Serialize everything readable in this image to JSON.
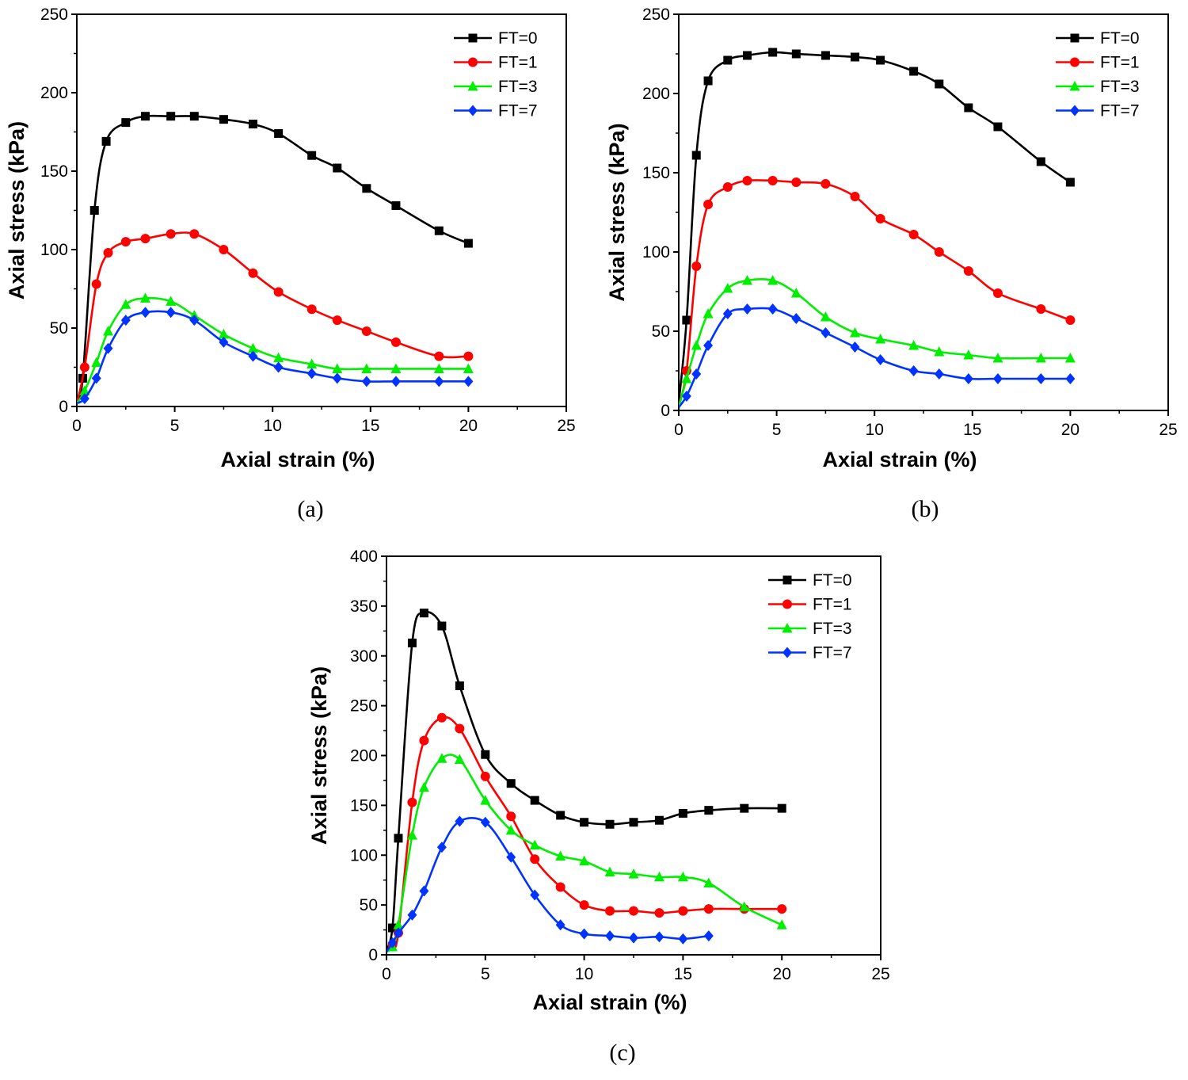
{
  "chart_data": [
    {
      "type": "line",
      "caption": "(a)",
      "xlabel": "Axial strain (%)",
      "ylabel": "Axial stress (kPa)",
      "xlim": [
        0,
        25
      ],
      "ylim": [
        0,
        250
      ],
      "xticks": [
        "0",
        "5",
        "10",
        "15",
        "20",
        "25"
      ],
      "yticks": [
        "0",
        "50",
        "100",
        "150",
        "200",
        "250"
      ],
      "legend_position": "top-right",
      "series": [
        {
          "name": "FT=0",
          "color": "#000000",
          "marker": "square",
          "x": [
            0,
            0.3,
            0.9,
            1.5,
            2.5,
            3.5,
            4.8,
            6.0,
            7.5,
            9.0,
            10.3,
            12.0,
            13.3,
            14.8,
            16.3,
            18.5,
            20.0
          ],
          "y": [
            5,
            18,
            125,
            169,
            181,
            185,
            185,
            185,
            183,
            180,
            174,
            160,
            152,
            139,
            128,
            112,
            104
          ]
        },
        {
          "name": "FT=1",
          "color": "#ff0000",
          "marker": "circle",
          "x": [
            0,
            0.4,
            1.0,
            1.6,
            2.5,
            3.5,
            4.8,
            6.0,
            7.5,
            9.0,
            10.3,
            12.0,
            13.3,
            14.8,
            16.3,
            18.5,
            20.0
          ],
          "y": [
            2,
            25,
            78,
            98,
            105,
            107,
            110,
            110,
            100,
            85,
            73,
            62,
            55,
            48,
            41,
            32,
            32
          ]
        },
        {
          "name": "FT=3",
          "color": "#00ee00",
          "marker": "triangle",
          "x": [
            0,
            0.4,
            1.0,
            1.6,
            2.5,
            3.5,
            4.8,
            6.0,
            7.5,
            9.0,
            10.3,
            12.0,
            13.3,
            14.8,
            16.3,
            18.5,
            20.0
          ],
          "y": [
            2,
            10,
            28,
            48,
            65,
            69,
            67,
            58,
            46,
            37,
            31,
            27,
            24,
            24,
            24,
            24,
            24
          ]
        },
        {
          "name": "FT=7",
          "color": "#0033ff",
          "marker": "diamond",
          "x": [
            0,
            0.4,
            1.0,
            1.6,
            2.5,
            3.5,
            4.8,
            6.0,
            7.5,
            9.0,
            10.3,
            12.0,
            13.3,
            14.8,
            16.3,
            18.5,
            20.0
          ],
          "y": [
            2,
            5,
            18,
            37,
            55,
            60,
            60,
            55,
            41,
            32,
            25,
            21,
            18,
            16,
            16,
            16,
            16
          ]
        }
      ]
    },
    {
      "type": "line",
      "caption": "(b)",
      "xlabel": "Axial strain (%)",
      "ylabel": "Axial stress (kPa)",
      "xlim": [
        0,
        25
      ],
      "ylim": [
        0,
        250
      ],
      "xticks": [
        "0",
        "5",
        "10",
        "15",
        "20",
        "25"
      ],
      "yticks": [
        "0",
        "50",
        "100",
        "150",
        "200",
        "250"
      ],
      "legend_position": "top-right",
      "series": [
        {
          "name": "FT=0",
          "color": "#000000",
          "marker": "square",
          "x": [
            0,
            0.4,
            0.9,
            1.5,
            2.5,
            3.5,
            4.8,
            6.0,
            7.5,
            9.0,
            10.3,
            12.0,
            13.3,
            14.8,
            16.3,
            18.5,
            20.0
          ],
          "y": [
            5,
            57,
            161,
            208,
            221,
            224,
            226,
            225,
            224,
            223,
            221,
            214,
            206,
            191,
            179,
            157,
            144
          ]
        },
        {
          "name": "FT=1",
          "color": "#ff0000",
          "marker": "circle",
          "x": [
            0,
            0.4,
            0.9,
            1.5,
            2.5,
            3.5,
            4.8,
            6.0,
            7.5,
            9.0,
            10.3,
            12.0,
            13.3,
            14.8,
            16.3,
            18.5,
            20.0
          ],
          "y": [
            3,
            25,
            91,
            130,
            141,
            145,
            145,
            144,
            143,
            135,
            121,
            111,
            100,
            88,
            74,
            64,
            57
          ]
        },
        {
          "name": "FT=3",
          "color": "#00ee00",
          "marker": "triangle",
          "x": [
            0,
            0.4,
            0.9,
            1.5,
            2.5,
            3.5,
            4.8,
            6.0,
            7.5,
            9.0,
            10.3,
            12.0,
            13.3,
            14.8,
            16.3,
            18.5,
            20.0
          ],
          "y": [
            2,
            20,
            41,
            61,
            77,
            82,
            82,
            74,
            59,
            49,
            45,
            41,
            37,
            35,
            33,
            33,
            33
          ]
        },
        {
          "name": "FT=7",
          "color": "#0033ff",
          "marker": "diamond",
          "x": [
            0,
            0.4,
            0.9,
            1.5,
            2.5,
            3.5,
            4.8,
            6.0,
            7.5,
            9.0,
            10.3,
            12.0,
            13.3,
            14.8,
            16.3,
            18.5,
            20.0
          ],
          "y": [
            2,
            9,
            23,
            41,
            61,
            64,
            64,
            58,
            49,
            40,
            32,
            25,
            23,
            20,
            20,
            20,
            20
          ]
        }
      ]
    },
    {
      "type": "line",
      "caption": "(c)",
      "xlabel": "Axial strain (%)",
      "ylabel": "Axial stress (kPa)",
      "xlim": [
        0,
        25
      ],
      "ylim": [
        0,
        400
      ],
      "xticks": [
        "0",
        "5",
        "10",
        "15",
        "20",
        "25"
      ],
      "yticks": [
        "0",
        "50",
        "100",
        "150",
        "200",
        "250",
        "300",
        "350",
        "400"
      ],
      "legend_position": "top-right",
      "series": [
        {
          "name": "FT=0",
          "color": "#000000",
          "marker": "square",
          "x": [
            0,
            0.3,
            0.6,
            1.3,
            1.9,
            2.8,
            3.7,
            5.0,
            6.3,
            7.5,
            8.8,
            10.0,
            11.3,
            12.5,
            13.8,
            15.0,
            16.3,
            18.1,
            20.0
          ],
          "y": [
            5,
            27,
            117,
            313,
            343,
            330,
            270,
            201,
            172,
            155,
            140,
            133,
            131,
            133,
            135,
            142,
            145,
            147,
            147
          ]
        },
        {
          "name": "FT=1",
          "color": "#ff0000",
          "marker": "circle",
          "x": [
            0,
            0.3,
            0.6,
            1.3,
            1.9,
            2.8,
            3.7,
            5.0,
            6.3,
            7.5,
            8.8,
            10.0,
            11.3,
            12.5,
            13.8,
            15.0,
            16.3,
            18.1,
            20.0
          ],
          "y": [
            3,
            10,
            22,
            153,
            215,
            238,
            227,
            179,
            139,
            96,
            68,
            50,
            44,
            44,
            42,
            44,
            46,
            46,
            46
          ]
        },
        {
          "name": "FT=3",
          "color": "#00ee00",
          "marker": "triangle",
          "x": [
            0,
            0.3,
            0.6,
            1.3,
            1.9,
            2.8,
            3.7,
            5.0,
            6.3,
            7.5,
            8.8,
            10.0,
            11.3,
            12.5,
            13.8,
            15.0,
            16.3,
            18.1,
            20.0
          ],
          "y": [
            3,
            8,
            30,
            120,
            168,
            197,
            196,
            155,
            125,
            110,
            99,
            94,
            83,
            81,
            78,
            78,
            72,
            48,
            30
          ]
        },
        {
          "name": "FT=7",
          "color": "#0033ff",
          "marker": "diamond",
          "x": [
            0,
            0.3,
            0.6,
            1.3,
            1.9,
            2.8,
            3.7,
            5.0,
            6.3,
            7.5,
            8.8,
            10.0,
            11.3,
            12.5,
            13.8,
            15.0,
            16.3
          ],
          "y": [
            3,
            12,
            22,
            40,
            64,
            108,
            134,
            133,
            98,
            60,
            30,
            21,
            19,
            17,
            18,
            16,
            19
          ]
        }
      ]
    }
  ]
}
